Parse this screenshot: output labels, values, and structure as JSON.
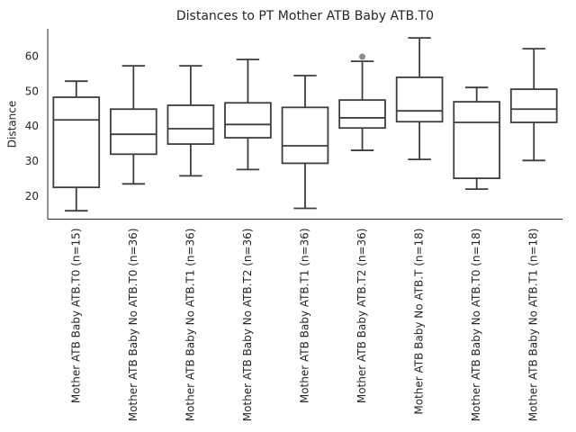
{
  "chart_data": {
    "type": "box",
    "title": "Distances to PT Mother ATB Baby ATB.T0",
    "y_label": "Distance",
    "categories": [
      "Mother ATB Baby ATB.T0 (n=15)",
      "Mother ATB Baby No ATB.T0 (n=36)",
      "Mother ATB Baby No ATB.T1 (n=36)",
      "Mother ATB Baby No ATB.T2 (n=36)",
      "Mother ATB Baby ATB.T1 (n=36)",
      "Mother ATB Baby ATB.T2 (n=36)",
      "Mother ATB Baby No ATB.T (n=18)",
      "Mother ATB Baby No ATB.T0 (n=18)",
      "Mother ATB Baby No ATB.T1 (n=18)"
    ],
    "boxes": [
      {
        "whislo": 15.9,
        "q1": 22.6,
        "med": 41.9,
        "q3": 48.4,
        "whishi": 53.0,
        "fliers": []
      },
      {
        "whislo": 23.6,
        "q1": 32.1,
        "med": 37.8,
        "q3": 45.0,
        "whishi": 57.4,
        "fliers": []
      },
      {
        "whislo": 25.9,
        "q1": 35.0,
        "med": 39.4,
        "q3": 46.1,
        "whishi": 57.4,
        "fliers": []
      },
      {
        "whislo": 27.7,
        "q1": 36.8,
        "med": 40.6,
        "q3": 46.8,
        "whishi": 59.2,
        "fliers": []
      },
      {
        "whislo": 16.6,
        "q1": 29.5,
        "med": 34.5,
        "q3": 45.5,
        "whishi": 54.6,
        "fliers": []
      },
      {
        "whislo": 33.2,
        "q1": 39.6,
        "med": 42.5,
        "q3": 47.6,
        "whishi": 58.7,
        "fliers": [
          60.0
        ]
      },
      {
        "whislo": 30.6,
        "q1": 41.4,
        "med": 44.5,
        "q3": 54.1,
        "whishi": 65.4,
        "fliers": []
      },
      {
        "whislo": 22.1,
        "q1": 25.2,
        "med": 41.2,
        "q3": 47.1,
        "whishi": 51.2,
        "fliers": []
      },
      {
        "whislo": 30.3,
        "q1": 41.2,
        "med": 45.0,
        "q3": 50.7,
        "whishi": 62.3,
        "fliers": []
      }
    ],
    "color": "#3d3d3d",
    "box_fill": "#ffffff",
    "flier_color": "#8c8c8c",
    "ylim": [
      13.5,
      68
    ],
    "yticks": [
      20,
      30,
      40,
      50,
      60
    ],
    "grid": false
  }
}
